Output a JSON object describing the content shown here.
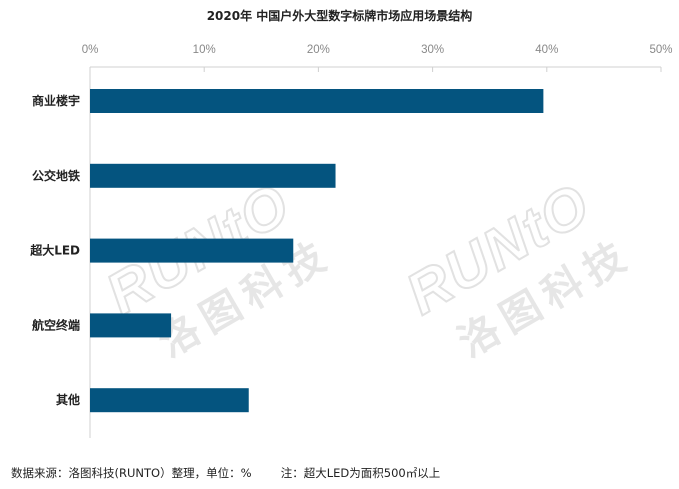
{
  "chart_data": {
    "type": "bar",
    "orientation": "horizontal",
    "title": "2020年 中国户外大型数字标牌市场应用场景结构",
    "categories": [
      "商业楼宇",
      "公交地铁",
      "超大LED",
      "航空终端",
      "其他"
    ],
    "values": [
      39.7,
      21.5,
      17.8,
      7.1,
      13.9
    ],
    "xlim": [
      0,
      50
    ],
    "ticks": [
      "0%",
      "10%",
      "20%",
      "30%",
      "40%",
      "50%"
    ],
    "axis_position": "top",
    "grid": false,
    "bar_color": "#04547f"
  },
  "footer": {
    "source": "数据来源：洛图科技(RUNTO）整理，单位：%",
    "note": "注：超大LED为面积500㎡以上"
  },
  "watermark": {
    "en": "RUNTO",
    "cn": "洛图科技"
  }
}
